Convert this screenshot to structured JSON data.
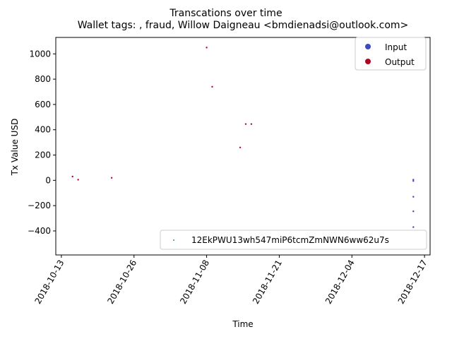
{
  "chart_data": {
    "type": "scatter",
    "suptitle": "Transcations over time",
    "title": "Wallet tags: , fraud, Willow Daigneau <bmdienadsi@outlook.com>",
    "xlabel": "Time",
    "ylabel": "Tx Value USD",
    "xlim": [
      "2018-10-12",
      "2018-12-18"
    ],
    "ylim": [
      -590,
      1130
    ],
    "x_ticks": [
      "2018-10-13",
      "2018-10-26",
      "2018-11-08",
      "2018-11-21",
      "2018-12-04",
      "2018-12-17"
    ],
    "y_ticks": [
      1000,
      800,
      600,
      400,
      200,
      0,
      -200,
      -400
    ],
    "grid": false,
    "legend_top": {
      "position": "upper right",
      "entries": [
        "Input",
        "Output"
      ]
    },
    "legend_bottom": {
      "position": "lower right",
      "entries": [
        "12EkPWU13wh547miP6tcmZmNWN6ww62u7s"
      ]
    },
    "colors": {
      "input": "#3b4cc0",
      "output": "#b40426",
      "address": "#3a8f8f"
    },
    "series": [
      {
        "name": "Input",
        "points": [
          {
            "x": "2018-12-15",
            "y": -5
          },
          {
            "x": "2018-12-15",
            "y": 5
          },
          {
            "x": "2018-12-15",
            "y": -130
          },
          {
            "x": "2018-12-15",
            "y": -245
          },
          {
            "x": "2018-12-15",
            "y": -370
          }
        ]
      },
      {
        "name": "Output",
        "points": [
          {
            "x": "2018-10-15",
            "y": 30
          },
          {
            "x": "2018-10-16",
            "y": 5
          },
          {
            "x": "2018-10-22",
            "y": 20
          },
          {
            "x": "2018-11-08",
            "y": 1050
          },
          {
            "x": "2018-11-09",
            "y": 740
          },
          {
            "x": "2018-11-14",
            "y": 260
          },
          {
            "x": "2018-11-15",
            "y": 445
          },
          {
            "x": "2018-11-16",
            "y": 445
          }
        ]
      }
    ]
  }
}
